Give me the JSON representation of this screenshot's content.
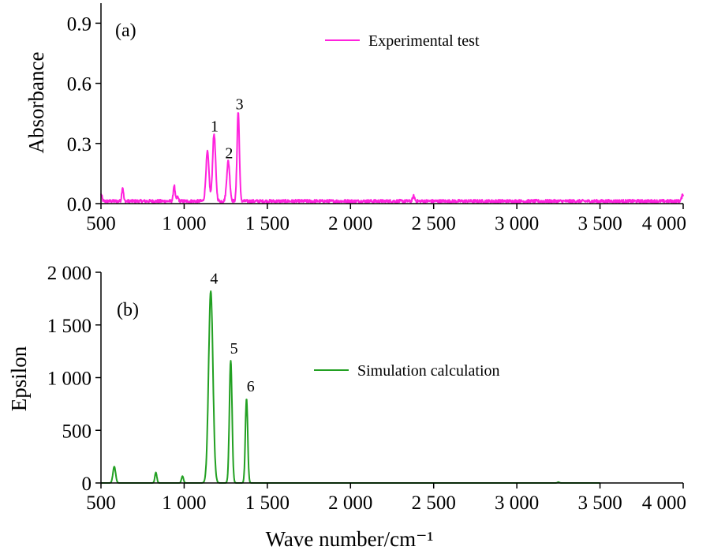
{
  "chart_data": [
    {
      "panel_label": "(a)",
      "type": "line",
      "ylabel": "Absorbance",
      "xlabel": "",
      "xlim": [
        500,
        4000
      ],
      "ylim": [
        0,
        1.0
      ],
      "xticks": [
        500,
        1000,
        1500,
        2000,
        2500,
        3000,
        3500,
        4000
      ],
      "xtick_labels": [
        "500",
        "1 000",
        "1 500",
        "2 000",
        "2 500",
        "3 000",
        "3 500",
        "4 000"
      ],
      "yticks": [
        0,
        0.3,
        0.6,
        0.9
      ],
      "ytick_labels": [
        "0.0",
        "0.3",
        "0.6",
        "0.9"
      ],
      "legend_position": "top-right",
      "color": "#ff22dd",
      "series": [
        {
          "name": "Experimental test",
          "baseline": 0.012,
          "noise": 0.008,
          "peaks": [
            {
              "x": 500,
              "y": 0.035,
              "w": 6
            },
            {
              "x": 630,
              "y": 0.07,
              "w": 5
            },
            {
              "x": 940,
              "y": 0.08,
              "w": 5
            },
            {
              "x": 960,
              "y": 0.02,
              "w": 6
            },
            {
              "x": 1140,
              "y": 0.245,
              "w": 9
            },
            {
              "x": 1180,
              "y": 0.335,
              "w": 9
            },
            {
              "x": 1265,
              "y": 0.2,
              "w": 9
            },
            {
              "x": 1325,
              "y": 0.445,
              "w": 7
            },
            {
              "x": 2380,
              "y": 0.025,
              "w": 6
            },
            {
              "x": 4000,
              "y": 0.035,
              "w": 8
            }
          ]
        }
      ],
      "annotations": [
        {
          "text": "1",
          "x": 1183,
          "y": 0.345
        },
        {
          "text": "2",
          "x": 1270,
          "y": 0.21
        },
        {
          "text": "3",
          "x": 1333,
          "y": 0.455
        }
      ]
    },
    {
      "panel_label": "(b)",
      "type": "line",
      "ylabel": "Epsilon",
      "xlabel": "Wave number/cm⁻¹",
      "xlim": [
        500,
        4000
      ],
      "ylim": [
        0,
        2000
      ],
      "xticks": [
        500,
        1000,
        1500,
        2000,
        2500,
        3000,
        3500,
        4000
      ],
      "xtick_labels": [
        "500",
        "1 000",
        "1 500",
        "2 000",
        "2 500",
        "3 000",
        "3 500",
        "4 000"
      ],
      "yticks": [
        0,
        500,
        1000,
        1500,
        2000
      ],
      "ytick_labels": [
        "0",
        "500",
        "1 000",
        "1 500",
        "2 000"
      ],
      "legend_position": "center-right",
      "color": "#22a022",
      "series": [
        {
          "name": "Simulation calculation",
          "baseline": 0,
          "noise": 0,
          "x_end": 3500,
          "peaks": [
            {
              "x": 580,
              "y": 155,
              "w": 8
            },
            {
              "x": 830,
              "y": 100,
              "w": 6
            },
            {
              "x": 990,
              "y": 65,
              "w": 6
            },
            {
              "x": 1160,
              "y": 1820,
              "w": 13
            },
            {
              "x": 1280,
              "y": 1160,
              "w": 8
            },
            {
              "x": 1375,
              "y": 800,
              "w": 7
            },
            {
              "x": 3250,
              "y": 8,
              "w": 6
            }
          ]
        }
      ],
      "annotations": [
        {
          "text": "4",
          "x": 1180,
          "y": 1860
        },
        {
          "text": "5",
          "x": 1300,
          "y": 1200
        },
        {
          "text": "6",
          "x": 1400,
          "y": 840
        }
      ]
    }
  ]
}
